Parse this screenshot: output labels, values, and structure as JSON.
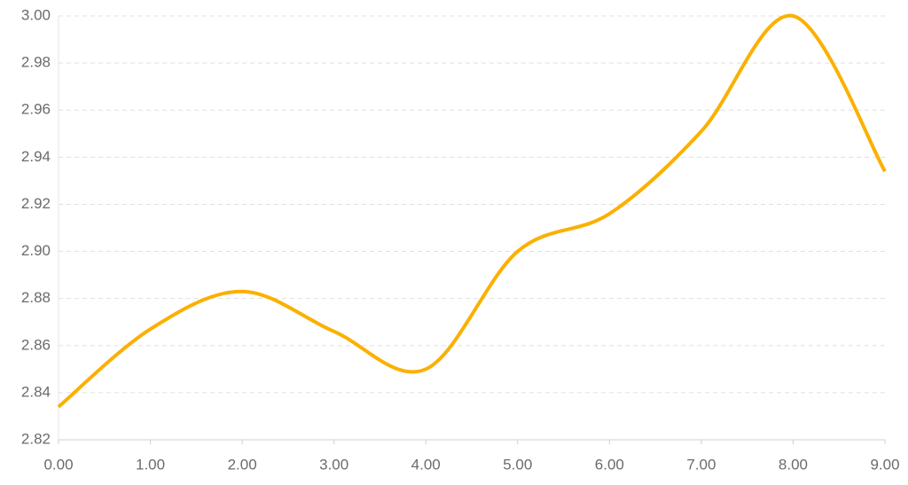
{
  "chart_data": {
    "type": "line",
    "x": [
      0,
      1,
      2,
      3,
      4,
      5,
      6,
      7,
      8,
      9
    ],
    "series": [
      {
        "color": "#fbb000",
        "values": [
          2.834,
          2.867,
          2.883,
          2.866,
          2.85,
          2.9,
          2.916,
          2.951,
          3.0,
          2.934
        ]
      }
    ],
    "xlim": [
      0,
      9
    ],
    "xticks": [
      {
        "value": 0,
        "label": "0.00"
      },
      {
        "value": 1,
        "label": "1.00"
      },
      {
        "value": 2,
        "label": "2.00"
      },
      {
        "value": 3,
        "label": "3.00"
      },
      {
        "value": 4,
        "label": "4.00"
      },
      {
        "value": 5,
        "label": "5.00"
      },
      {
        "value": 6,
        "label": "6.00"
      },
      {
        "value": 7,
        "label": "7.00"
      },
      {
        "value": 8,
        "label": "8.00"
      },
      {
        "value": 9,
        "label": "9.00"
      }
    ],
    "ylim": [
      2.82,
      3.0
    ],
    "yticks": [
      {
        "value": 2.82,
        "label": "2.82"
      },
      {
        "value": 2.84,
        "label": "2.84"
      },
      {
        "value": 2.86,
        "label": "2.86"
      },
      {
        "value": 2.88,
        "label": "2.88"
      },
      {
        "value": 2.9,
        "label": "2.90"
      },
      {
        "value": 2.92,
        "label": "2.92"
      },
      {
        "value": 2.94,
        "label": "2.94"
      },
      {
        "value": 2.96,
        "label": "2.96"
      },
      {
        "value": 2.98,
        "label": "2.98"
      },
      {
        "value": 3.0,
        "label": "3.00"
      }
    ],
    "grid": true
  }
}
